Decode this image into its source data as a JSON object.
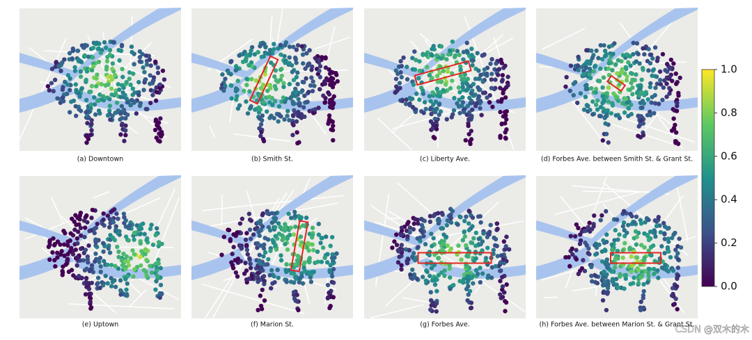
{
  "panels": [
    {
      "caption": "(a) Downtown"
    },
    {
      "caption": "(b) Smith St."
    },
    {
      "caption": "(c) Liberty Ave."
    },
    {
      "caption": "(d) Forbes Ave. between Smith St. & Grant St."
    },
    {
      "caption": "(e) Uptown"
    },
    {
      "caption": "(f) Marion St."
    },
    {
      "caption": "(g) Forbes Ave."
    },
    {
      "caption": "(h) Forbes Ave. between Marion St. & Grant St."
    }
  ],
  "colorbar": {
    "ylim": [
      0,
      1
    ],
    "yticks": [
      {
        "value": 0,
        "label": "0.0"
      },
      0.2,
      0.4,
      0.6,
      0.8,
      {
        "value": 1,
        "label": "1.0"
      }
    ]
  },
  "watermark": "CSDN @双木的木"
}
